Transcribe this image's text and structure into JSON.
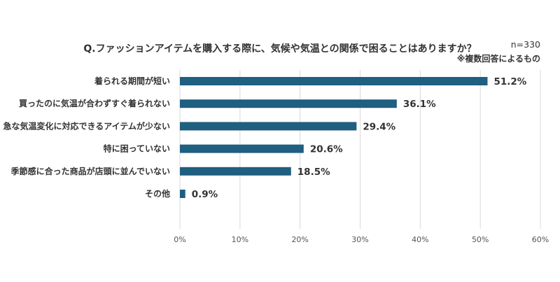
{
  "chart_data": {
    "type": "bar",
    "orientation": "horizontal",
    "title": "Q.ファッションアイテムを購入する際に、気候や気温との関係で困ることはありますか？",
    "sample_note": "n=330",
    "multi_note": "※複数回答によるもの",
    "categories": [
      "着られる期間が短い",
      "買ったのに気温が合わずすぐ着られない",
      "急な気温変化に対応できるアイテムが少ない",
      "特に困っていない",
      "季節感に合った商品が店頭に並んでいない",
      "その他"
    ],
    "values": [
      51.2,
      36.1,
      29.4,
      20.6,
      18.5,
      0.9
    ],
    "value_labels": [
      "51.2%",
      "36.1%",
      "29.4%",
      "20.6%",
      "18.5%",
      "0.9%"
    ],
    "xlim": [
      0,
      60
    ],
    "ticks": [
      "0%",
      "10%",
      "20%",
      "30%",
      "40%",
      "50%",
      "60%"
    ],
    "grid": true,
    "bar_color": "#1f5f80"
  }
}
